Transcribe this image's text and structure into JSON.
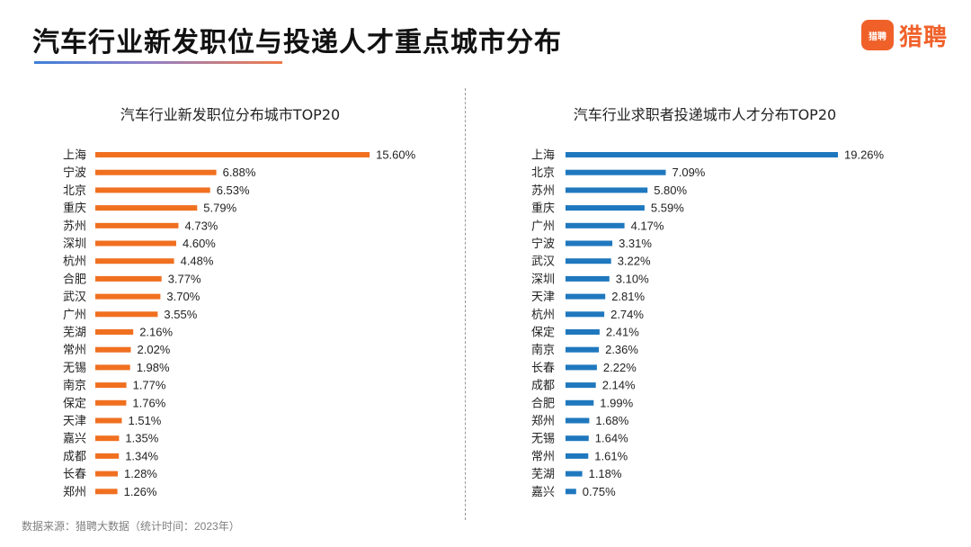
{
  "header": {
    "title": "汽车行业新发职位与投递人才重点城市分布",
    "logo_badge": "猎聘",
    "logo_text": "猎聘"
  },
  "footer": {
    "source": "数据来源：猎聘大数据（统计时间：2023年）"
  },
  "colors": {
    "left_bar": "#f07020",
    "right_bar": "#1f78be"
  },
  "chart_data": [
    {
      "type": "bar",
      "orientation": "horizontal",
      "title": "汽车行业新发职位分布城市TOP20",
      "categories": [
        "上海",
        "宁波",
        "北京",
        "重庆",
        "苏州",
        "深圳",
        "杭州",
        "合肥",
        "武汉",
        "广州",
        "芜湖",
        "常州",
        "无锡",
        "南京",
        "保定",
        "天津",
        "嘉兴",
        "成都",
        "长春",
        "郑州"
      ],
      "values": [
        15.6,
        6.88,
        6.53,
        5.79,
        4.73,
        4.6,
        4.48,
        3.77,
        3.7,
        3.55,
        2.16,
        2.02,
        1.98,
        1.77,
        1.76,
        1.51,
        1.35,
        1.34,
        1.28,
        1.26
      ],
      "value_labels": [
        "15.60%",
        "6.88%",
        "6.53%",
        "5.79%",
        "4.73%",
        "4.60%",
        "4.48%",
        "3.77%",
        "3.70%",
        "3.55%",
        "2.16%",
        "2.02%",
        "1.98%",
        "1.77%",
        "1.76%",
        "1.51%",
        "1.35%",
        "1.34%",
        "1.28%",
        "1.26%"
      ],
      "unit": "%",
      "color": "#f07020",
      "grid": false
    },
    {
      "type": "bar",
      "orientation": "horizontal",
      "title": "汽车行业求职者投递城市人才分布TOP20",
      "categories": [
        "上海",
        "北京",
        "苏州",
        "重庆",
        "广州",
        "宁波",
        "武汉",
        "深圳",
        "天津",
        "杭州",
        "保定",
        "南京",
        "长春",
        "成都",
        "合肥",
        "郑州",
        "无锡",
        "常州",
        "芜湖",
        "嘉兴"
      ],
      "values": [
        19.26,
        7.09,
        5.8,
        5.59,
        4.17,
        3.31,
        3.22,
        3.1,
        2.81,
        2.74,
        2.41,
        2.36,
        2.22,
        2.14,
        1.99,
        1.68,
        1.64,
        1.61,
        1.18,
        0.75
      ],
      "value_labels": [
        "19.26%",
        "7.09%",
        "5.80%",
        "5.59%",
        "4.17%",
        "3.31%",
        "3.22%",
        "3.10%",
        "2.81%",
        "2.74%",
        "2.41%",
        "2.36%",
        "2.22%",
        "2.14%",
        "1.99%",
        "1.68%",
        "1.64%",
        "1.61%",
        "1.18%",
        "0.75%"
      ],
      "unit": "%",
      "color": "#1f78be",
      "grid": false
    }
  ]
}
